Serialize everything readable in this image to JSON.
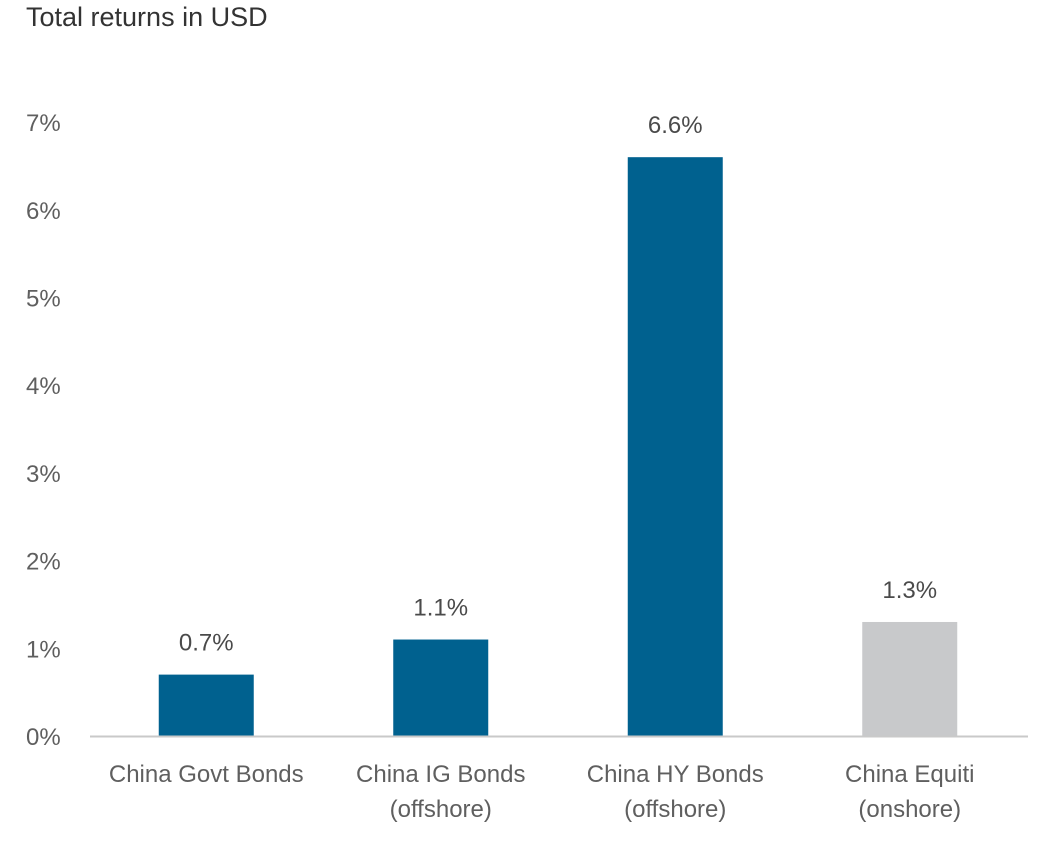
{
  "chart_data": {
    "type": "bar",
    "title": "Total returns in USD",
    "xlabel": "",
    "ylabel": "",
    "ylim": [
      0,
      7
    ],
    "yticks": [
      0,
      1,
      2,
      3,
      4,
      5,
      6,
      7
    ],
    "ytick_labels": [
      "0%",
      "1%",
      "2%",
      "3%",
      "4%",
      "5%",
      "6%",
      "7%"
    ],
    "grid": false,
    "legend": "none",
    "categories": [
      [
        "China Govt Bonds"
      ],
      [
        "China IG Bonds",
        "(offshore)"
      ],
      [
        "China HY Bonds",
        "(offshore)"
      ],
      [
        "China Equiti",
        "(onshore)"
      ]
    ],
    "values": [
      0.7,
      1.1,
      6.6,
      1.3
    ],
    "data_labels": [
      "0.7%",
      "1.1%",
      "6.6%",
      "1.3%"
    ],
    "colors": [
      "#00618f",
      "#00618f",
      "#00618f",
      "#c8c9cb"
    ]
  }
}
